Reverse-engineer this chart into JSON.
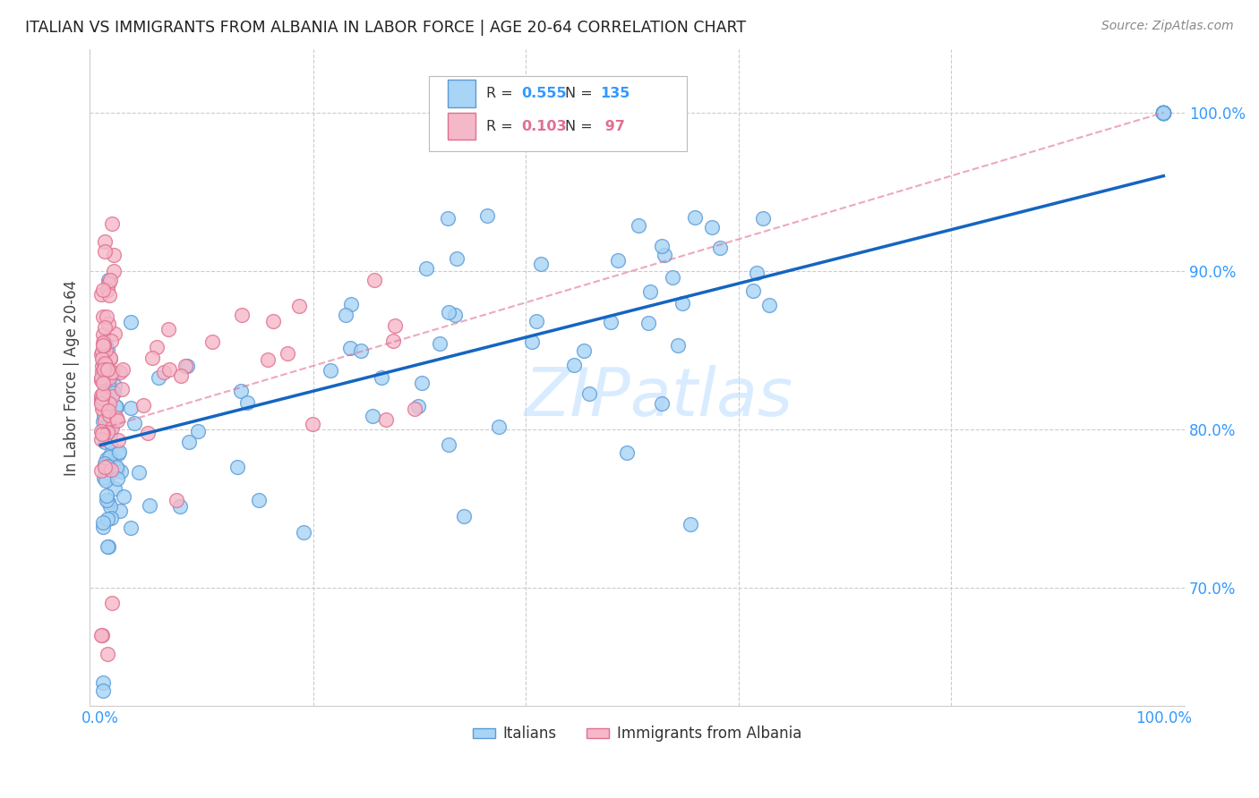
{
  "title": "ITALIAN VS IMMIGRANTS FROM ALBANIA IN LABOR FORCE | AGE 20-64 CORRELATION CHART",
  "source": "Source: ZipAtlas.com",
  "ylabel": "In Labor Force | Age 20-64",
  "xlim": [
    -0.01,
    1.02
  ],
  "ylim": [
    0.625,
    1.04
  ],
  "xtick_vals": [
    0.0,
    0.2,
    0.4,
    0.6,
    0.8,
    1.0
  ],
  "xtick_labels": [
    "0.0%",
    "",
    "",
    "",
    "",
    "100.0%"
  ],
  "ytick_vals": [
    0.7,
    0.8,
    0.9,
    1.0
  ],
  "ytick_labels": [
    "70.0%",
    "80.0%",
    "90.0%",
    "100.0%"
  ],
  "legend_blue_R": "0.555",
  "legend_blue_N": "135",
  "legend_pink_R": "0.103",
  "legend_pink_N": " 97",
  "watermark": "ZIPatlas",
  "blue_face": "#a8d4f5",
  "blue_edge": "#5b9bd5",
  "pink_face": "#f5b8c8",
  "pink_edge": "#e07090",
  "line_blue_color": "#1565c0",
  "line_pink_color": "#e07090",
  "title_color": "#222222",
  "source_color": "#888888",
  "axis_tick_color": "#3399ff",
  "grid_color": "#cccccc",
  "ylabel_color": "#444444",
  "watermark_color": "#bbddff"
}
